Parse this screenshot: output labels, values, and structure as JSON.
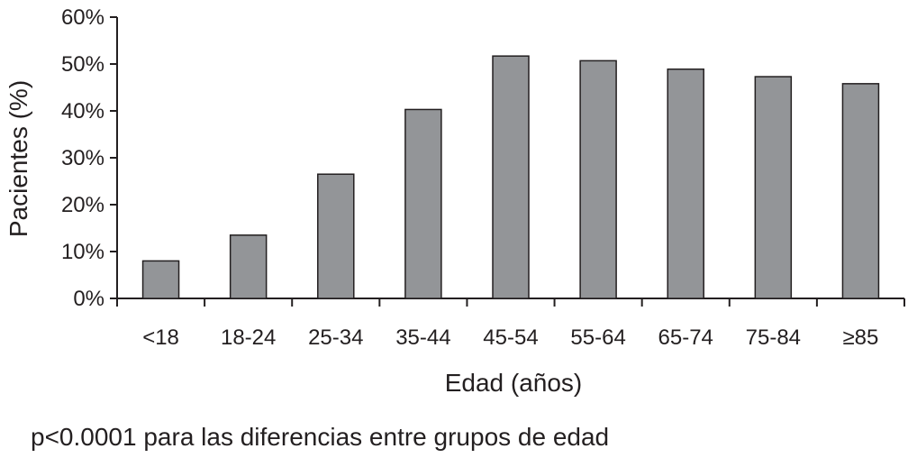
{
  "chart_data": {
    "type": "bar",
    "categories": [
      "<18",
      "18-24",
      "25-34",
      "35-44",
      "45-54",
      "55-64",
      "65-74",
      "75-84",
      "≥85"
    ],
    "values": [
      8,
      13.5,
      26.5,
      40.3,
      51.7,
      50.7,
      48.9,
      47.3,
      45.8
    ],
    "ylim": [
      0,
      60
    ],
    "yticks": [
      0,
      10,
      20,
      30,
      40,
      50,
      60
    ],
    "ytick_labels": [
      "0%",
      "10%",
      "20%",
      "30%",
      "40%",
      "50%",
      "60%"
    ],
    "xlabel": "Edad (años)",
    "ylabel": "Pacientes (%)",
    "bar_color": "#939598",
    "bar_edge_color": "#231f20",
    "grid": false
  },
  "footnote": "p<0.0001 para las diferencias entre grupos de edad"
}
